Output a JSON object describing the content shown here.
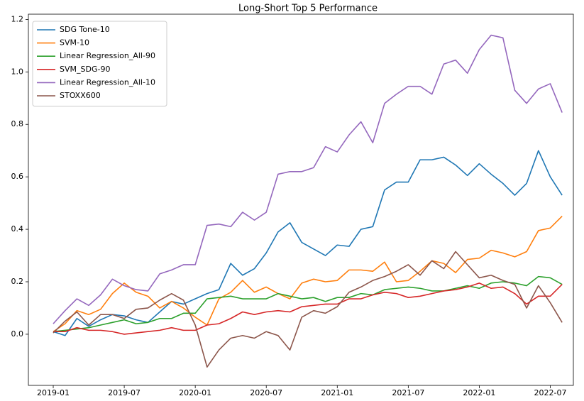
{
  "chart_data": {
    "type": "line",
    "title": "Long-Short Top 5 Performance",
    "x": [
      "2019-01",
      "2019-02",
      "2019-03",
      "2019-04",
      "2019-05",
      "2019-06",
      "2019-07",
      "2019-08",
      "2019-09",
      "2019-10",
      "2019-11",
      "2019-12",
      "2020-01",
      "2020-02",
      "2020-03",
      "2020-04",
      "2020-05",
      "2020-06",
      "2020-07",
      "2020-08",
      "2020-09",
      "2020-10",
      "2020-11",
      "2020-12",
      "2021-01",
      "2021-02",
      "2021-03",
      "2021-04",
      "2021-05",
      "2021-06",
      "2021-07",
      "2021-08",
      "2021-09",
      "2021-10",
      "2021-11",
      "2021-12",
      "2022-01",
      "2022-02",
      "2022-03",
      "2022-04",
      "2022-05",
      "2022-06",
      "2022-07",
      "2022-08"
    ],
    "xticks": [
      "2019-01",
      "2019-07",
      "2020-01",
      "2020-07",
      "2021-01",
      "2021-07",
      "2022-01",
      "2022-07"
    ],
    "ylim": [
      -0.195,
      1.22
    ],
    "yticks": [
      {
        "value": 0,
        "label": "0.0"
      },
      0.2,
      0.4,
      0.6,
      0.8,
      {
        "value": 1,
        "label": "1.0"
      },
      1.2
    ],
    "legend": "upper-left",
    "series": [
      {
        "name": "SDG Tone-10",
        "color": "#1f77b4",
        "values": [
          0.01,
          -0.005,
          0.06,
          0.03,
          0.055,
          0.075,
          0.07,
          0.055,
          0.045,
          0.085,
          0.125,
          0.115,
          0.135,
          0.155,
          0.17,
          0.27,
          0.225,
          0.25,
          0.31,
          0.39,
          0.425,
          0.35,
          0.325,
          0.3,
          0.34,
          0.335,
          0.4,
          0.41,
          0.55,
          0.58,
          0.58,
          0.665,
          0.665,
          0.675,
          0.645,
          0.605,
          0.65,
          0.61,
          0.575,
          0.53,
          0.575,
          0.7,
          0.6,
          0.53
        ]
      },
      {
        "name": "SVM-10",
        "color": "#ff7f0e",
        "values": [
          0.01,
          0.04,
          0.09,
          0.075,
          0.095,
          0.155,
          0.195,
          0.16,
          0.145,
          0.1,
          0.125,
          0.1,
          0.065,
          0.035,
          0.135,
          0.16,
          0.205,
          0.16,
          0.18,
          0.155,
          0.135,
          0.195,
          0.21,
          0.2,
          0.205,
          0.245,
          0.245,
          0.24,
          0.275,
          0.2,
          0.205,
          0.24,
          0.28,
          0.27,
          0.235,
          0.285,
          0.29,
          0.32,
          0.31,
          0.295,
          0.315,
          0.395,
          0.405,
          0.45
        ]
      },
      {
        "name": "Linear Regression_All-90",
        "color": "#2ca02c",
        "values": [
          0.01,
          0.015,
          0.02,
          0.025,
          0.035,
          0.045,
          0.055,
          0.04,
          0.045,
          0.06,
          0.06,
          0.08,
          0.08,
          0.135,
          0.14,
          0.145,
          0.135,
          0.135,
          0.135,
          0.155,
          0.145,
          0.135,
          0.14,
          0.125,
          0.14,
          0.14,
          0.155,
          0.15,
          0.17,
          0.175,
          0.18,
          0.175,
          0.165,
          0.165,
          0.175,
          0.185,
          0.175,
          0.195,
          0.2,
          0.195,
          0.185,
          0.22,
          0.215,
          0.19
        ]
      },
      {
        "name": "SVM_SDG-90",
        "color": "#d62728",
        "values": [
          0.01,
          0.01,
          0.025,
          0.015,
          0.015,
          0.01,
          0.0,
          0.005,
          0.01,
          0.015,
          0.025,
          0.015,
          0.015,
          0.035,
          0.04,
          0.06,
          0.085,
          0.075,
          0.085,
          0.09,
          0.085,
          0.105,
          0.11,
          0.115,
          0.115,
          0.135,
          0.135,
          0.15,
          0.16,
          0.155,
          0.14,
          0.145,
          0.155,
          0.165,
          0.17,
          0.18,
          0.195,
          0.175,
          0.18,
          0.155,
          0.115,
          0.145,
          0.145,
          0.19
        ]
      },
      {
        "name": "Linear Regression_All-10",
        "color": "#9467bd",
        "values": [
          0.04,
          0.09,
          0.135,
          0.11,
          0.15,
          0.21,
          0.185,
          0.17,
          0.165,
          0.23,
          0.245,
          0.265,
          0.265,
          0.415,
          0.42,
          0.41,
          0.465,
          0.435,
          0.465,
          0.61,
          0.62,
          0.62,
          0.635,
          0.715,
          0.695,
          0.76,
          0.81,
          0.73,
          0.88,
          0.915,
          0.945,
          0.945,
          0.915,
          1.03,
          1.045,
          0.995,
          1.085,
          1.14,
          1.13,
          0.93,
          0.88,
          0.935,
          0.955,
          0.845
        ]
      },
      {
        "name": "STOXX600",
        "color": "#8c564b",
        "values": [
          0.005,
          0.05,
          0.085,
          0.035,
          0.075,
          0.075,
          0.06,
          0.095,
          0.1,
          0.13,
          0.155,
          0.13,
          0.035,
          -0.125,
          -0.06,
          -0.015,
          -0.005,
          -0.015,
          0.01,
          -0.005,
          -0.06,
          0.065,
          0.09,
          0.08,
          0.105,
          0.16,
          0.18,
          0.205,
          0.22,
          0.24,
          0.265,
          0.225,
          0.28,
          0.25,
          0.315,
          0.265,
          0.215,
          0.225,
          0.205,
          0.19,
          0.1,
          0.185,
          0.12,
          0.045
        ]
      }
    ]
  }
}
